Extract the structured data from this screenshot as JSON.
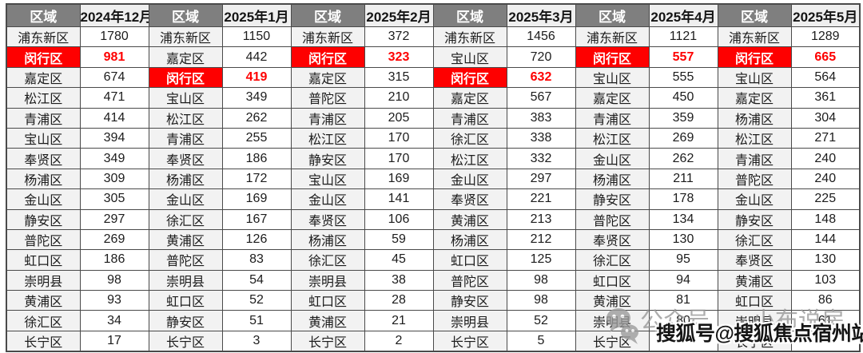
{
  "table": {
    "region_header": "区域",
    "highlight_color": "#fe0000",
    "header_bg": "#7f7f7f",
    "groups": [
      {
        "month": "2024年12月",
        "rows": [
          {
            "district": "浦东新区",
            "value": "1780",
            "highlight": false
          },
          {
            "district": "闵行区",
            "value": "981",
            "highlight": true
          },
          {
            "district": "嘉定区",
            "value": "674",
            "highlight": false
          },
          {
            "district": "松江区",
            "value": "471",
            "highlight": false
          },
          {
            "district": "青浦区",
            "value": "414",
            "highlight": false
          },
          {
            "district": "宝山区",
            "value": "394",
            "highlight": false
          },
          {
            "district": "奉贤区",
            "value": "349",
            "highlight": false
          },
          {
            "district": "杨浦区",
            "value": "309",
            "highlight": false
          },
          {
            "district": "金山区",
            "value": "305",
            "highlight": false
          },
          {
            "district": "静安区",
            "value": "297",
            "highlight": false
          },
          {
            "district": "普陀区",
            "value": "269",
            "highlight": false
          },
          {
            "district": "虹口区",
            "value": "186",
            "highlight": false
          },
          {
            "district": "崇明县",
            "value": "98",
            "highlight": false
          },
          {
            "district": "黄浦区",
            "value": "93",
            "highlight": false
          },
          {
            "district": "徐汇区",
            "value": "34",
            "highlight": false
          },
          {
            "district": "长宁区",
            "value": "17",
            "highlight": false
          }
        ]
      },
      {
        "month": "2025年1月",
        "rows": [
          {
            "district": "浦东新区",
            "value": "1150",
            "highlight": false
          },
          {
            "district": "嘉定区",
            "value": "442",
            "highlight": false
          },
          {
            "district": "闵行区",
            "value": "419",
            "highlight": true
          },
          {
            "district": "宝山区",
            "value": "349",
            "highlight": false
          },
          {
            "district": "松江区",
            "value": "262",
            "highlight": false
          },
          {
            "district": "青浦区",
            "value": "255",
            "highlight": false
          },
          {
            "district": "奉贤区",
            "value": "186",
            "highlight": false
          },
          {
            "district": "杨浦区",
            "value": "172",
            "highlight": false
          },
          {
            "district": "金山区",
            "value": "169",
            "highlight": false
          },
          {
            "district": "徐汇区",
            "value": "167",
            "highlight": false
          },
          {
            "district": "黄浦区",
            "value": "126",
            "highlight": false
          },
          {
            "district": "普陀区",
            "value": "83",
            "highlight": false
          },
          {
            "district": "崇明县",
            "value": "54",
            "highlight": false
          },
          {
            "district": "虹口区",
            "value": "52",
            "highlight": false
          },
          {
            "district": "静安区",
            "value": "51",
            "highlight": false
          },
          {
            "district": "长宁区",
            "value": "3",
            "highlight": false
          }
        ]
      },
      {
        "month": "2025年2月",
        "rows": [
          {
            "district": "浦东新区",
            "value": "372",
            "highlight": false
          },
          {
            "district": "闵行区",
            "value": "323",
            "highlight": true
          },
          {
            "district": "嘉定区",
            "value": "315",
            "highlight": false
          },
          {
            "district": "普陀区",
            "value": "210",
            "highlight": false
          },
          {
            "district": "青浦区",
            "value": "205",
            "highlight": false
          },
          {
            "district": "松江区",
            "value": "170",
            "highlight": false
          },
          {
            "district": "静安区",
            "value": "170",
            "highlight": false
          },
          {
            "district": "宝山区",
            "value": "169",
            "highlight": false
          },
          {
            "district": "金山区",
            "value": "141",
            "highlight": false
          },
          {
            "district": "奉贤区",
            "value": "106",
            "highlight": false
          },
          {
            "district": "杨浦区",
            "value": "59",
            "highlight": false
          },
          {
            "district": "徐汇区",
            "value": "45",
            "highlight": false
          },
          {
            "district": "崇明县",
            "value": "38",
            "highlight": false
          },
          {
            "district": "虹口区",
            "value": "28",
            "highlight": false
          },
          {
            "district": "黄浦区",
            "value": "21",
            "highlight": false
          },
          {
            "district": "长宁区",
            "value": "2",
            "highlight": false
          }
        ]
      },
      {
        "month": "2025年3月",
        "rows": [
          {
            "district": "浦东新区",
            "value": "1456",
            "highlight": false
          },
          {
            "district": "宝山区",
            "value": "720",
            "highlight": false
          },
          {
            "district": "闵行区",
            "value": "632",
            "highlight": true
          },
          {
            "district": "嘉定区",
            "value": "567",
            "highlight": false
          },
          {
            "district": "青浦区",
            "value": "383",
            "highlight": false
          },
          {
            "district": "徐汇区",
            "value": "338",
            "highlight": false
          },
          {
            "district": "松江区",
            "value": "332",
            "highlight": false
          },
          {
            "district": "金山区",
            "value": "297",
            "highlight": false
          },
          {
            "district": "奉贤区",
            "value": "221",
            "highlight": false
          },
          {
            "district": "黄浦区",
            "value": "213",
            "highlight": false
          },
          {
            "district": "杨浦区",
            "value": "212",
            "highlight": false
          },
          {
            "district": "虹口区",
            "value": "125",
            "highlight": false
          },
          {
            "district": "普陀区",
            "value": "98",
            "highlight": false
          },
          {
            "district": "静安区",
            "value": "98",
            "highlight": false
          },
          {
            "district": "崇明县",
            "value": "52",
            "highlight": false
          },
          {
            "district": "长宁区",
            "value": "5",
            "highlight": false
          }
        ]
      },
      {
        "month": "2025年4月",
        "rows": [
          {
            "district": "浦东新区",
            "value": "1121",
            "highlight": false
          },
          {
            "district": "闵行区",
            "value": "557",
            "highlight": true
          },
          {
            "district": "宝山区",
            "value": "555",
            "highlight": false
          },
          {
            "district": "嘉定区",
            "value": "450",
            "highlight": false
          },
          {
            "district": "青浦区",
            "value": "359",
            "highlight": false
          },
          {
            "district": "松江区",
            "value": "269",
            "highlight": false
          },
          {
            "district": "金山区",
            "value": "262",
            "highlight": false
          },
          {
            "district": "杨浦区",
            "value": "211",
            "highlight": false
          },
          {
            "district": "静安区",
            "value": "178",
            "highlight": false
          },
          {
            "district": "普陀区",
            "value": "134",
            "highlight": false
          },
          {
            "district": "奉贤区",
            "value": "130",
            "highlight": false
          },
          {
            "district": "徐汇区",
            "value": "95",
            "highlight": false
          },
          {
            "district": "虹口区",
            "value": "94",
            "highlight": false
          },
          {
            "district": "黄浦区",
            "value": "81",
            "highlight": false
          },
          {
            "district": "崇明县",
            "value": "80",
            "highlight": false
          },
          {
            "district": "长宁区",
            "value": "",
            "highlight": false
          }
        ]
      },
      {
        "month": "2025年5月",
        "rows": [
          {
            "district": "浦东新区",
            "value": "1289",
            "highlight": false
          },
          {
            "district": "闵行区",
            "value": "665",
            "highlight": true
          },
          {
            "district": "宝山区",
            "value": "564",
            "highlight": false
          },
          {
            "district": "嘉定区",
            "value": "361",
            "highlight": false
          },
          {
            "district": "杨浦区",
            "value": "304",
            "highlight": false
          },
          {
            "district": "松江区",
            "value": "271",
            "highlight": false
          },
          {
            "district": "青浦区",
            "value": "240",
            "highlight": false
          },
          {
            "district": "普陀区",
            "value": "240",
            "highlight": false
          },
          {
            "district": "金山区",
            "value": "225",
            "highlight": false
          },
          {
            "district": "静安区",
            "value": "148",
            "highlight": false
          },
          {
            "district": "徐汇区",
            "value": "144",
            "highlight": false
          },
          {
            "district": "奉贤区",
            "value": "130",
            "highlight": false
          },
          {
            "district": "黄浦区",
            "value": "103",
            "highlight": false
          },
          {
            "district": "虹口区",
            "value": "86",
            "highlight": false
          },
          {
            "district": "崇明县",
            "value": "61",
            "highlight": false
          },
          {
            "district": "长宁区",
            "value": "",
            "highlight": false
          }
        ]
      }
    ]
  },
  "watermark": {
    "wechat_prefix": "公众号",
    "wechat_name": "小布说房",
    "sohu_line": "搜狐号@搜狐焦点宿州站"
  }
}
